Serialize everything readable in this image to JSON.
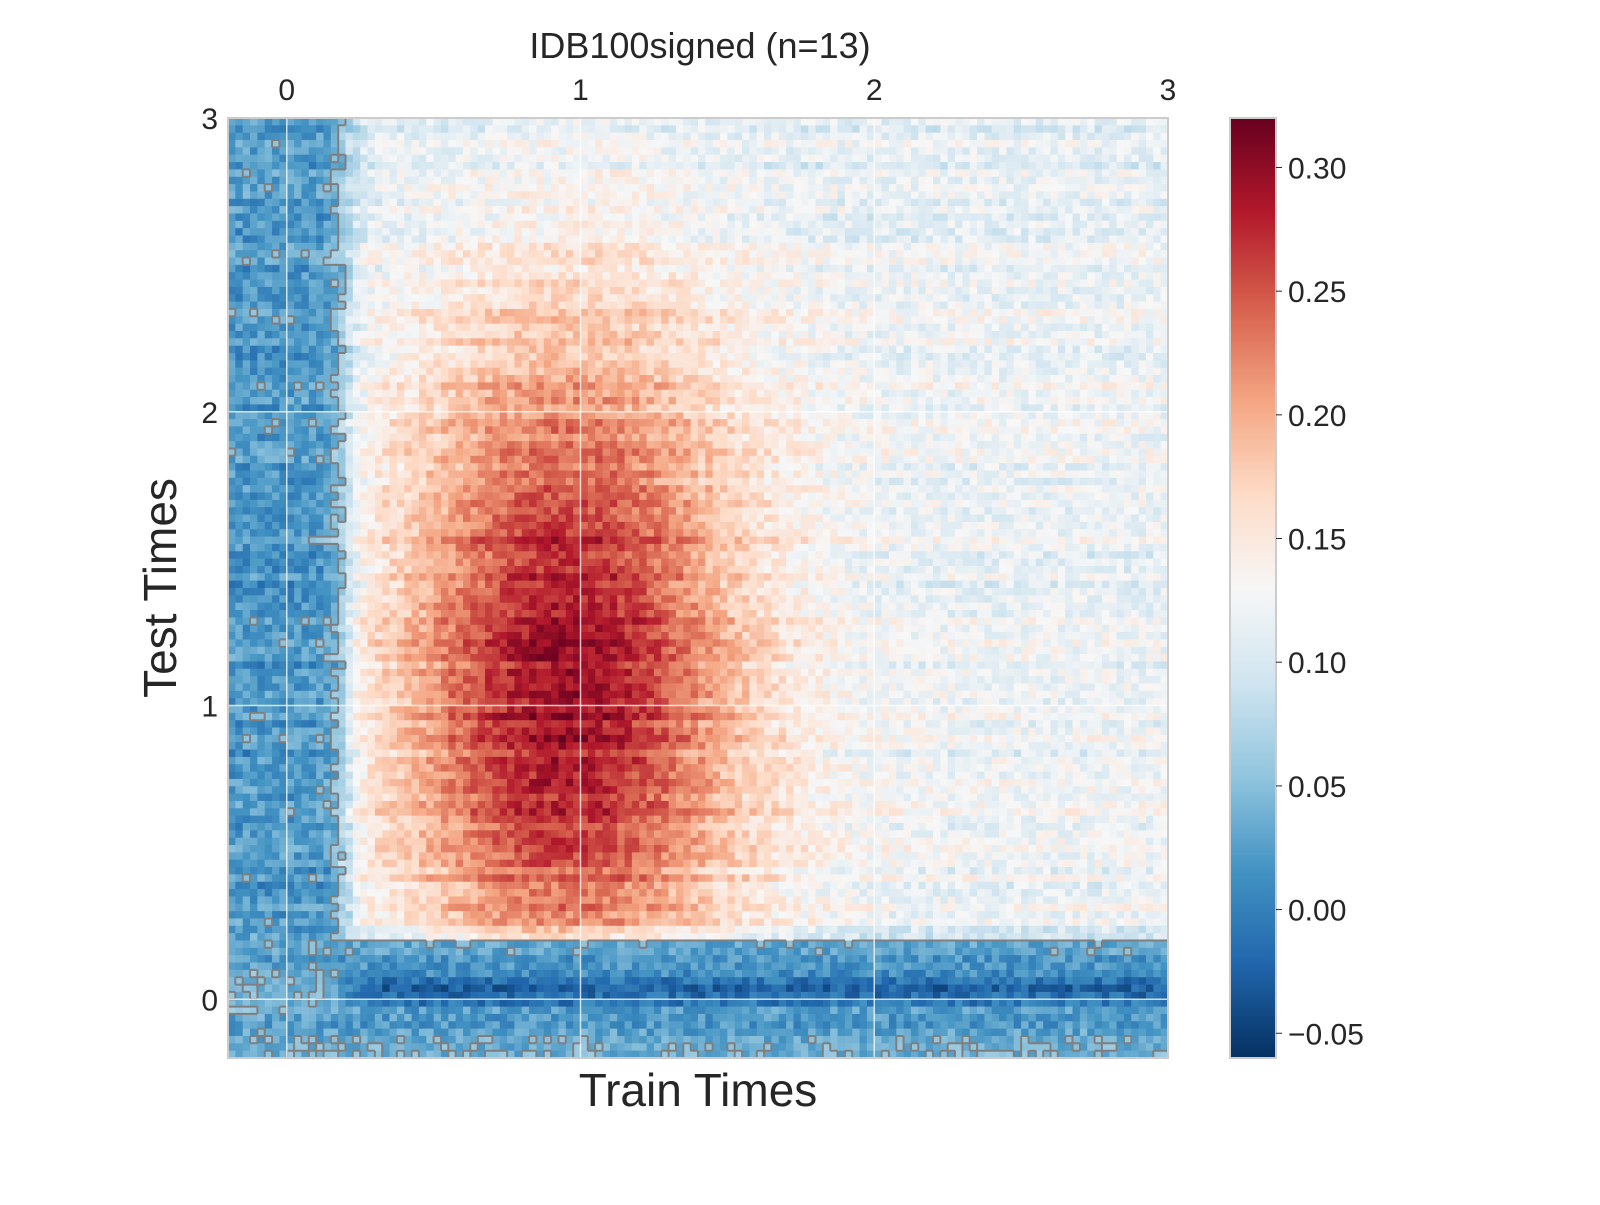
{
  "chart_data": {
    "type": "heatmap",
    "title": "IDB100signed (n=13)",
    "xlabel": "Train Times",
    "ylabel": "Test Times",
    "xticks": [
      "0",
      "1",
      "2",
      "3"
    ],
    "yticks": [
      "0",
      "1",
      "2",
      "3"
    ],
    "xaxis_position": "top",
    "xlim": [
      -0.2,
      3.0
    ],
    "ylim": [
      -0.2,
      3.0
    ],
    "grid": true,
    "colormap": "RdBu_r",
    "color_range": [
      -0.06,
      0.32
    ],
    "colorbar_ticks": [
      "0.30",
      "0.25",
      "0.20",
      "0.15",
      "0.10",
      "0.05",
      "0.00",
      "−0.05"
    ],
    "colorbar_tick_values": [
      0.3,
      0.25,
      0.2,
      0.15,
      0.1,
      0.05,
      0.0,
      -0.05
    ],
    "colorbar_stops": [
      "#053061",
      "#2166ac",
      "#4393c3",
      "#92c5de",
      "#d1e5f0",
      "#f7f7f7",
      "#fddbc7",
      "#f4a582",
      "#d6604d",
      "#b2182b",
      "#67001f"
    ],
    "contour_color": "#7f7f7f",
    "summary": {
      "peak_value": 0.27,
      "peak_train_time": 0.95,
      "peak_test_time": 1.1,
      "pre_onset_value": 0.02,
      "onset_train_time": 0.2,
      "onset_test_time": 0.2,
      "late_train_value": 0.09
    }
  }
}
